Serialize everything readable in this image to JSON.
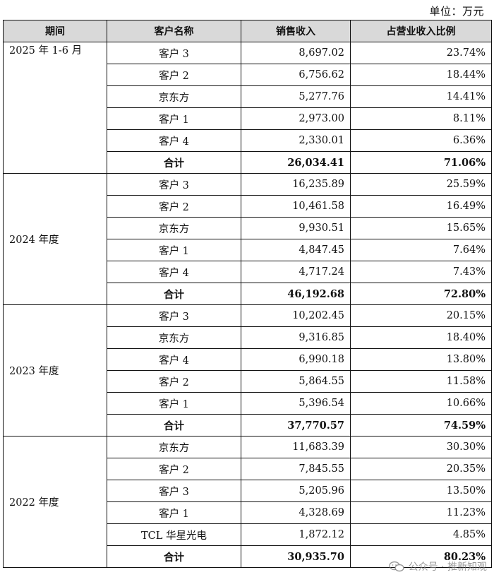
{
  "unit_label": "单位：万元",
  "headers": [
    "期间",
    "客户名称",
    "销售收入",
    "占营业收入比例"
  ],
  "groups": [
    {
      "period": "2025 年 1-6 月",
      "rows": [
        {
          "customer": "客户 3",
          "revenue": "8,697.02",
          "share": "23.74%"
        },
        {
          "customer": "客户 2",
          "revenue": "6,756.62",
          "share": "18.44%"
        },
        {
          "customer": "京东方",
          "revenue": "5,277.76",
          "share": "14.41%"
        },
        {
          "customer": "客户 1",
          "revenue": "2,973.00",
          "share": "8.11%"
        },
        {
          "customer": "客户 4",
          "revenue": "2,330.01",
          "share": "6.36%"
        }
      ],
      "total": {
        "label": "合计",
        "revenue": "26,034.41",
        "share": "71.06%"
      }
    },
    {
      "period": "2024 年度",
      "rows": [
        {
          "customer": "客户 3",
          "revenue": "16,235.89",
          "share": "25.59%"
        },
        {
          "customer": "客户 2",
          "revenue": "10,461.58",
          "share": "16.49%"
        },
        {
          "customer": "京东方",
          "revenue": "9,930.51",
          "share": "15.65%"
        },
        {
          "customer": "客户 1",
          "revenue": "4,847.45",
          "share": "7.64%"
        },
        {
          "customer": "客户 4",
          "revenue": "4,717.24",
          "share": "7.43%"
        }
      ],
      "total": {
        "label": "合计",
        "revenue": "46,192.68",
        "share": "72.80%"
      }
    },
    {
      "period": "2023 年度",
      "rows": [
        {
          "customer": "客户 3",
          "revenue": "10,202.45",
          "share": "20.15%"
        },
        {
          "customer": "京东方",
          "revenue": "9,316.85",
          "share": "18.40%"
        },
        {
          "customer": "客户 4",
          "revenue": "6,990.18",
          "share": "13.80%"
        },
        {
          "customer": "客户 2",
          "revenue": "5,864.55",
          "share": "11.58%"
        },
        {
          "customer": "客户 1",
          "revenue": "5,396.54",
          "share": "10.66%"
        }
      ],
      "total": {
        "label": "合计",
        "revenue": "37,770.57",
        "share": "74.59%"
      }
    },
    {
      "period": "2022 年度",
      "rows": [
        {
          "customer": "京东方",
          "revenue": "11,683.39",
          "share": "30.30%"
        },
        {
          "customer": "客户 2",
          "revenue": "7,845.55",
          "share": "20.35%"
        },
        {
          "customer": "客户 3",
          "revenue": "5,205.96",
          "share": "13.50%"
        },
        {
          "customer": "客户 1",
          "revenue": "4,328.69",
          "share": "11.23%"
        },
        {
          "customer": "TCL 华星光电",
          "revenue": "1,872.12",
          "share": "4.85%"
        }
      ],
      "total": {
        "label": "合计",
        "revenue": "30,935.70",
        "share": "80.23%"
      }
    }
  ],
  "watermark": {
    "text": "公众号 · 推新知观",
    "icon": "wechat-icon"
  }
}
